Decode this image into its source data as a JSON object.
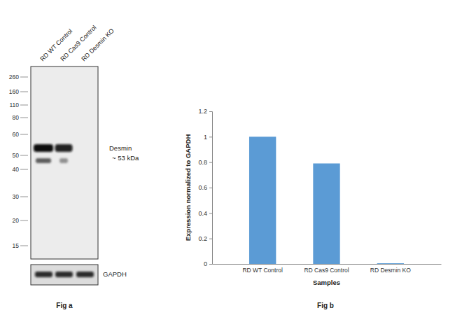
{
  "chart_data": {
    "type": "bar",
    "title": "Fig b",
    "categories": [
      "RD WT Control",
      "RD Cas9 Control",
      "RD Desmin KO"
    ],
    "values": [
      1,
      0.79,
      0.005
    ],
    "color": "#5b9bd5",
    "x_label": "Samples",
    "y_label": "Expression normalized to GAPDH",
    "ylim": [
      0,
      1.2
    ],
    "yticks": [
      0,
      0.2,
      0.4,
      0.6,
      0.8,
      1,
      1.2
    ],
    "grid": false
  },
  "blot": {
    "title": "Fig a",
    "lanes": [
      "RD WT Control",
      "RD Cas9 Control",
      "RD Desmin KO"
    ],
    "markers": [
      260,
      160,
      110,
      80,
      60,
      50,
      40,
      30,
      20,
      15
    ],
    "band": {
      "label": "Desmin",
      "size_label": "~ 53 kDa",
      "present": [
        true,
        true,
        false
      ]
    },
    "secondary_band_present": [
      true,
      true,
      false
    ],
    "loading_control": {
      "label": "GAPDH",
      "present": [
        true,
        true,
        true
      ]
    }
  }
}
